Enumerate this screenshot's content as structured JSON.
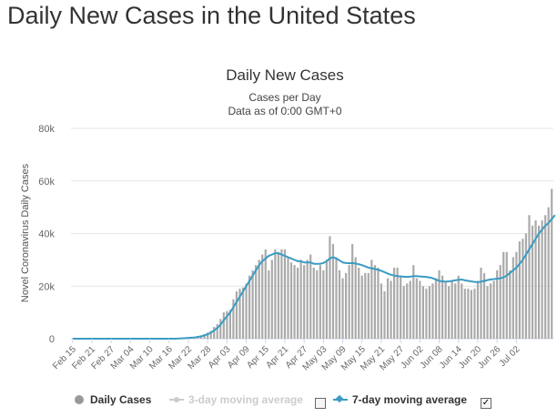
{
  "page": {
    "title": "Daily New Cases in the United States"
  },
  "chart_data": {
    "type": "bar",
    "title": "Daily New Cases",
    "subtitle_lines": [
      "Cases per Day",
      "Data as of 0:00 GMT+0"
    ],
    "ylabel": "Novel Coronavirus Daily Cases",
    "xlabel": "",
    "ylim": [
      0,
      80000
    ],
    "yticks": [
      0,
      20000,
      40000,
      60000,
      80000
    ],
    "ytick_labels": [
      "0",
      "20k",
      "40k",
      "60k",
      "80k"
    ],
    "start_date": "2020-02-15",
    "x_tick_labels": [
      "Feb 15",
      "Feb 21",
      "Feb 27",
      "Mar 04",
      "Mar 10",
      "Mar 16",
      "Mar 22",
      "Mar 28",
      "Apr 03",
      "Apr 09",
      "Apr 15",
      "Apr 21",
      "Apr 27",
      "May 03",
      "May 09",
      "May 15",
      "May 21",
      "May 27",
      "Jun 02",
      "Jun 08",
      "Jun 14",
      "Jun 20",
      "Jun 26",
      "Jul 02"
    ],
    "grid": true,
    "legend_position": "bottom",
    "series": [
      {
        "name": "Daily Cases",
        "type": "bar",
        "color": "#aaaaaa",
        "values": [
          0,
          0,
          0,
          0,
          0,
          0,
          0,
          0,
          0,
          0,
          0,
          0,
          0,
          0,
          0,
          0,
          0,
          0,
          0,
          0,
          0,
          0,
          0,
          0,
          0,
          0,
          0,
          0,
          0,
          0,
          0,
          0,
          0,
          100,
          200,
          300,
          400,
          500,
          600,
          800,
          1000,
          1700,
          2300,
          3000,
          4500,
          5500,
          7500,
          10000,
          10500,
          11000,
          15000,
          18000,
          19000,
          19500,
          21000,
          24000,
          26000,
          28000,
          30000,
          32000,
          34000,
          26000,
          30000,
          34000,
          33000,
          34000,
          34000,
          31000,
          29000,
          28000,
          27000,
          30000,
          28000,
          30000,
          32000,
          27000,
          26000,
          28000,
          26000,
          30000,
          39000,
          36000,
          31000,
          26000,
          23000,
          25000,
          28000,
          36000,
          31000,
          27000,
          24000,
          25000,
          25000,
          30000,
          28000,
          27000,
          21000,
          18000,
          23000,
          22000,
          27000,
          27000,
          24000,
          20000,
          21000,
          22000,
          28000,
          23000,
          22000,
          20000,
          19000,
          20000,
          21000,
          23000,
          26000,
          24000,
          22000,
          20000,
          22000,
          21000,
          24000,
          21000,
          19000,
          19000,
          18500,
          19000,
          22000,
          27000,
          25000,
          20000,
          21000,
          22000,
          26000,
          28000,
          33000,
          33000,
          26000,
          31000,
          33000,
          37000,
          38000,
          40000,
          47000,
          43000,
          45000,
          43000,
          45000,
          47000,
          50000,
          57000
        ]
      },
      {
        "name": "3-day moving average",
        "type": "line",
        "color": "#cccccc",
        "visible": false,
        "values": []
      },
      {
        "name": "7-day moving average",
        "type": "line",
        "color": "#3a9cc3",
        "visible": true,
        "values": [
          0,
          0,
          0,
          0,
          0,
          0,
          0,
          0,
          0,
          0,
          0,
          0,
          0,
          0,
          0,
          0,
          0,
          0,
          0,
          0,
          0,
          0,
          0,
          0,
          0,
          0,
          0,
          0,
          0,
          0,
          0,
          0,
          0,
          100,
          150,
          200,
          300,
          400,
          500,
          700,
          900,
          1300,
          1700,
          2300,
          3100,
          4100,
          5300,
          7000,
          8500,
          10000,
          12000,
          14000,
          16000,
          18000,
          20000,
          22000,
          24000,
          26000,
          28000,
          29500,
          30500,
          31500,
          32000,
          32500,
          32500,
          32000,
          31500,
          31000,
          30500,
          30000,
          29500,
          29500,
          29000,
          29000,
          29000,
          28500,
          28500,
          28500,
          28800,
          29500,
          30500,
          31000,
          30500,
          29800,
          29000,
          28800,
          28700,
          28800,
          28600,
          28300,
          28000,
          27500,
          27000,
          26800,
          26500,
          26200,
          25800,
          25300,
          24800,
          24300,
          24000,
          23800,
          23700,
          23600,
          23500,
          23600,
          23800,
          23800,
          23700,
          23600,
          23500,
          23300,
          23000,
          22500,
          22000,
          21800,
          21700,
          21800,
          22000,
          22200,
          22400,
          22500,
          22200,
          22000,
          21800,
          21600,
          21500,
          21700,
          22000,
          22300,
          22500,
          22700,
          22800,
          23000,
          23300,
          24000,
          25000,
          26000,
          27000,
          28500,
          30000,
          32000,
          34000,
          36000,
          38000,
          40000,
          41500,
          43000,
          44000,
          45500,
          47000
        ]
      }
    ]
  },
  "legend": {
    "daily": "Daily Cases",
    "ma3": "3-day moving average",
    "ma7": "7-day moving average",
    "check_mark": "✓"
  }
}
